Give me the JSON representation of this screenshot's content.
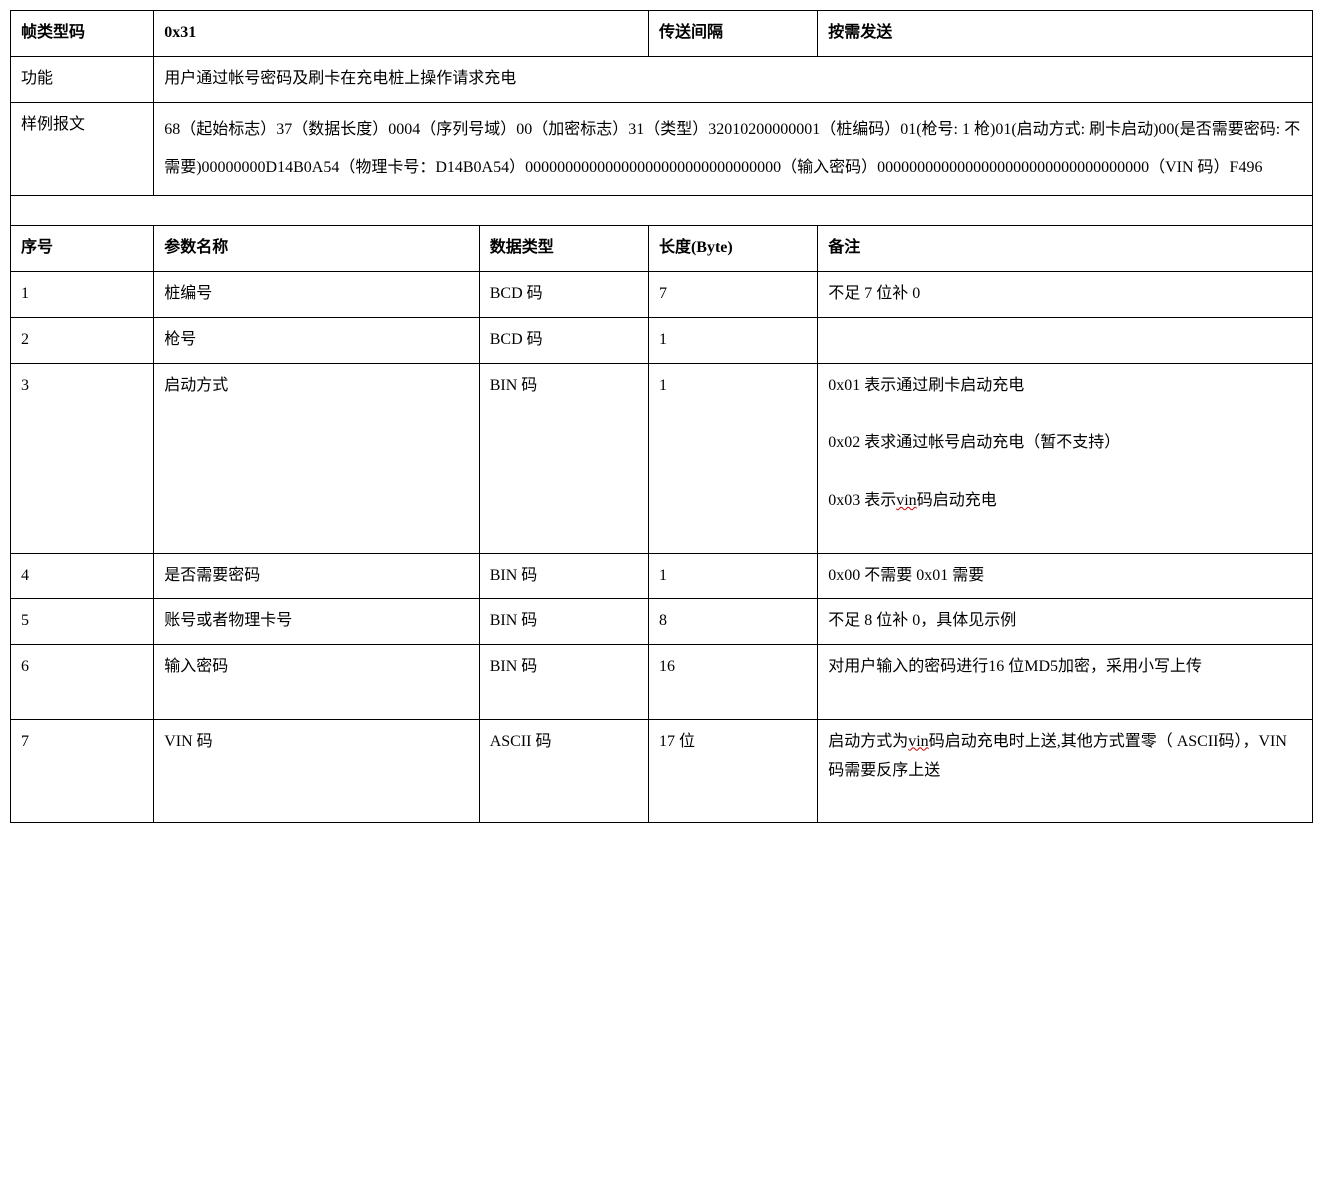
{
  "header": {
    "frame_type_label": "帧类型码",
    "frame_type_value": "0x31",
    "interval_label": "传送间隔",
    "interval_value": "按需发送",
    "function_label": "功能",
    "function_value": "用户通过帐号密码及刷卡在充电桩上操作请求充电",
    "example_label": "样例报文",
    "example_value": "68（起始标志）37（数据长度）0004（序列号域）00（加密标志）31（类型）32010200000001（桩编码）01(枪号: 1 枪)01(启动方式: 刷卡启动)00(是否需要密码: 不需要)00000000D14B0A54（物理卡号：D14B0A54）00000000000000000000000000000000（输入密码）0000000000000000000000000000000000（VIN 码）F496"
  },
  "params_header": {
    "seq": "序号",
    "name": "参数名称",
    "type": "数据类型",
    "length": "长度(Byte)",
    "remark": "备注"
  },
  "params": [
    {
      "seq": "1",
      "name": "桩编号",
      "type": "BCD 码",
      "length": "7",
      "remark": "不足 7 位补 0"
    },
    {
      "seq": "2",
      "name": "枪号",
      "type": "BCD 码",
      "length": "1",
      "remark": ""
    },
    {
      "seq": "3",
      "name": "启动方式",
      "type": "BIN 码",
      "length": "1",
      "remark_html": "0x01 表示通过刷卡启动充电<br><br>0x02 表求通过帐号启动充电（暂不支持）<br><br>0x03 表示<span class='wavy'>vin</span>码启动充电<br>&nbsp;"
    },
    {
      "seq": "4",
      "name": "是否需要密码",
      "type": "BIN 码",
      "length": "1",
      "remark": "0x00 不需要 0x01 需要"
    },
    {
      "seq": "5",
      "name": "账号或者物理卡号",
      "type": "BIN 码",
      "length": "8",
      "remark": "不足 8 位补 0，具体见示例"
    },
    {
      "seq": "6",
      "name": "输入密码",
      "type": "BIN 码",
      "length": "16",
      "remark_html": "对用户输入的密码进行16 位MD5加密，采用小写上传<br>&nbsp;"
    },
    {
      "seq": "7",
      "name": "VIN 码",
      "type": "ASCII 码",
      "length": "17 位",
      "remark_html": "启动方式为<span class='wavy'>vin</span>码启动充电时上送,其他方式置零（ ASCII码），VIN码需要反序上送<br>&nbsp;"
    }
  ]
}
